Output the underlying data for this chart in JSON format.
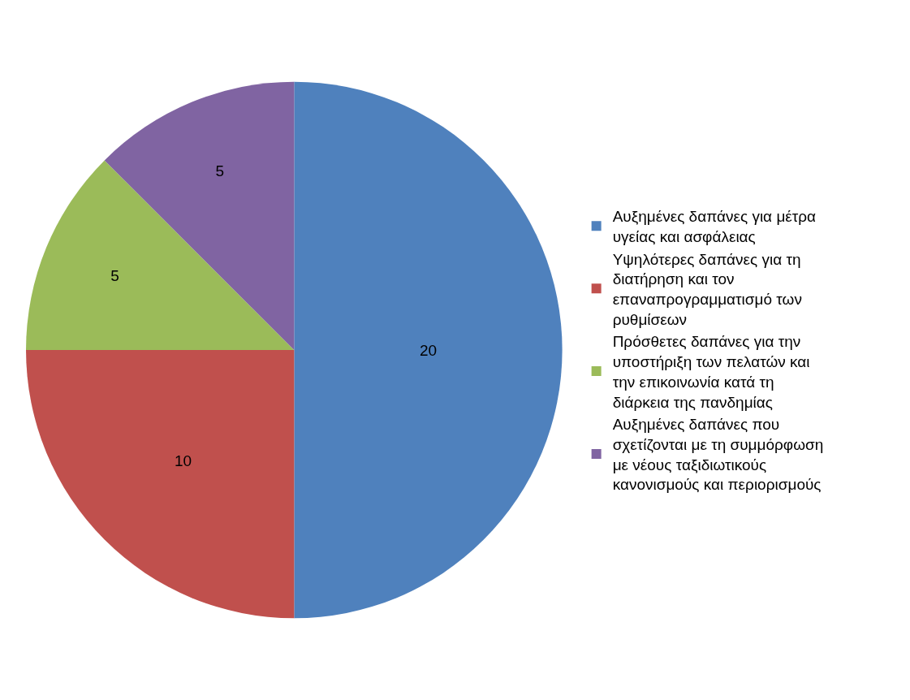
{
  "chart_data": {
    "type": "pie",
    "categories": [
      "Αυξημένες δαπάνες για μέτρα υγείας και ασφάλειας",
      "Υψηλότερες δαπάνες για τη διατήρηση και τον επαναπρογραμματισμό των ρυθμίσεων",
      "Πρόσθετες δαπάνες για την υποστήριξη των πελατών και την επικοινωνία κατά τη διάρκεια της πανδημίας",
      "Αυξημένες δαπάνες που σχετίζονται με τη συμμόρφωση με νέους ταξιδιωτικούς κανονισμούς και περιορισμούς"
    ],
    "values": [
      20,
      10,
      5,
      5
    ],
    "colors": [
      "#4f81bd",
      "#c0504d",
      "#9bbb59",
      "#8064a2"
    ],
    "data_labels": true,
    "legend": "right"
  }
}
